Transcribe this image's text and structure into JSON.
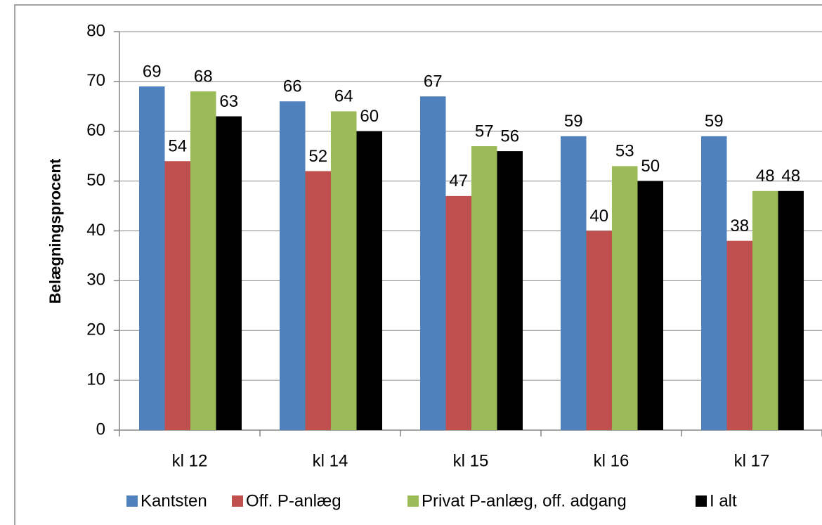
{
  "chart_data": {
    "type": "bar",
    "y_label": "Belægningsprocent",
    "categories": [
      "kl 12",
      "kl 14",
      "kl 15",
      "kl 16",
      "kl 17"
    ],
    "series": [
      {
        "name": "Kantsten",
        "color": "#4f81bd",
        "values": [
          69,
          66,
          67,
          59,
          59
        ]
      },
      {
        "name": "Off. P-anlæg",
        "color": "#c0504d",
        "values": [
          54,
          52,
          47,
          40,
          38
        ]
      },
      {
        "name": "Privat P-anlæg, off. adgang",
        "color": "#9bbb59",
        "values": [
          68,
          64,
          57,
          53,
          48
        ]
      },
      {
        "name": "I alt",
        "color": "#000000",
        "values": [
          63,
          60,
          56,
          50,
          48
        ]
      }
    ],
    "ylim": [
      0,
      80
    ],
    "yticks": [
      0,
      10,
      20,
      30,
      40,
      50,
      60,
      70,
      80
    ],
    "grid": true,
    "legend": "bottom"
  }
}
